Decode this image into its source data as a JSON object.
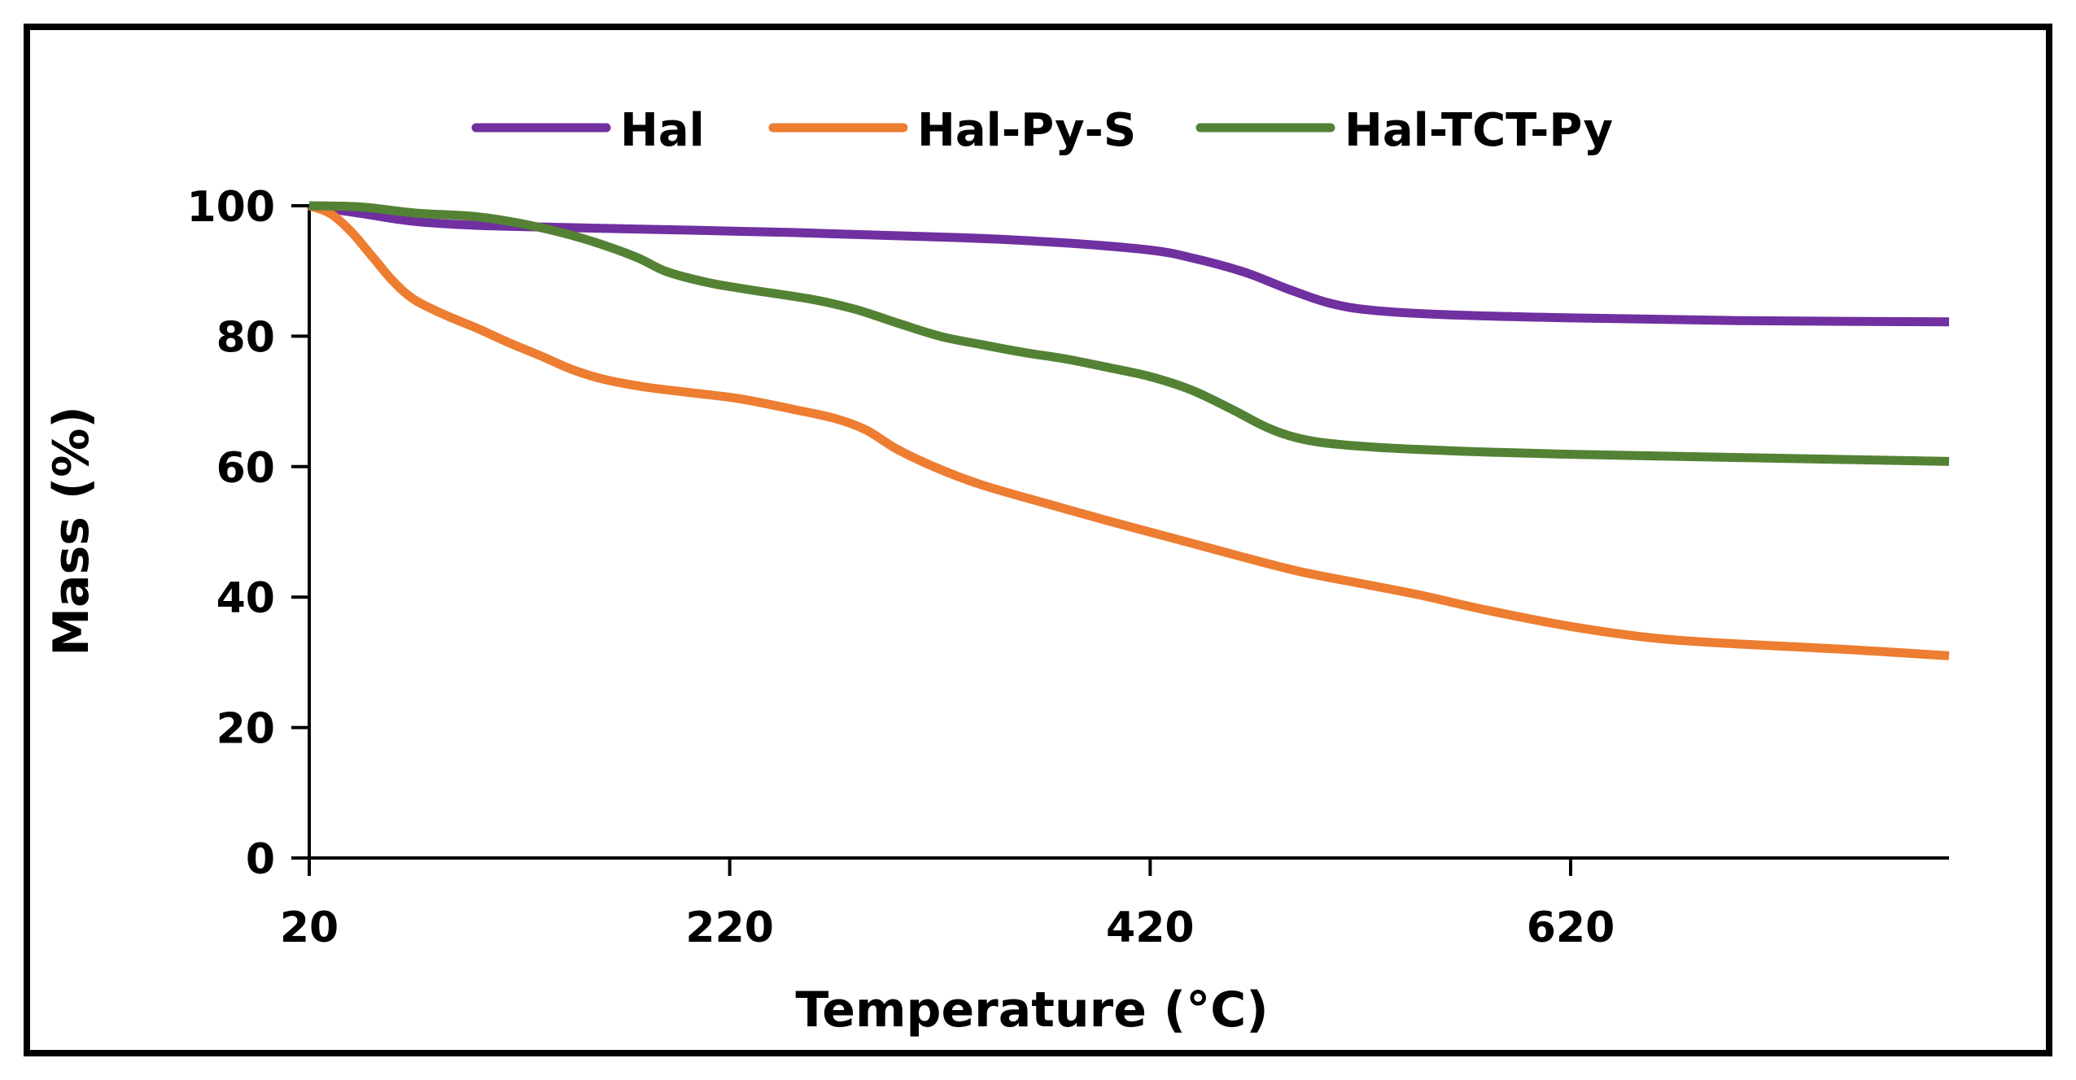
{
  "chart_data": {
    "type": "line",
    "title": "",
    "xlabel": "Temperature (°C)",
    "ylabel": "Mass (%)",
    "xlim": [
      20,
      800
    ],
    "ylim": [
      0,
      100
    ],
    "xticks": [
      20,
      220,
      420,
      620
    ],
    "yticks": [
      0,
      20,
      40,
      60,
      80,
      100
    ],
    "grid": false,
    "legend": "top-center",
    "series": [
      {
        "name": "Hal",
        "color": "#7030A0",
        "points": [
          [
            20,
            100
          ],
          [
            45,
            98.8
          ],
          [
            70,
            97.6
          ],
          [
            100,
            97
          ],
          [
            150,
            96.6
          ],
          [
            250,
            95.9
          ],
          [
            330,
            95.1
          ],
          [
            380,
            94.3
          ],
          [
            420,
            93.2
          ],
          [
            440,
            92
          ],
          [
            465,
            89.8
          ],
          [
            485,
            87.3
          ],
          [
            505,
            85.1
          ],
          [
            525,
            84
          ],
          [
            560,
            83.3
          ],
          [
            620,
            82.8
          ],
          [
            700,
            82.4
          ],
          [
            800,
            82.2
          ]
        ]
      },
      {
        "name": "Hal-Py-S",
        "color": "#ED7D31",
        "points": [
          [
            20,
            100
          ],
          [
            30,
            98.8
          ],
          [
            40,
            96
          ],
          [
            50,
            92.2
          ],
          [
            60,
            88.4
          ],
          [
            70,
            85.6
          ],
          [
            85,
            83.2
          ],
          [
            100,
            81.2
          ],
          [
            115,
            79
          ],
          [
            130,
            77
          ],
          [
            145,
            74.9
          ],
          [
            160,
            73.4
          ],
          [
            180,
            72.2
          ],
          [
            200,
            71.4
          ],
          [
            225,
            70.4
          ],
          [
            250,
            68.8
          ],
          [
            270,
            67.4
          ],
          [
            285,
            65.6
          ],
          [
            300,
            62.6
          ],
          [
            320,
            59.6
          ],
          [
            340,
            57.2
          ],
          [
            370,
            54.4
          ],
          [
            400,
            51.7
          ],
          [
            430,
            49.1
          ],
          [
            460,
            46.5
          ],
          [
            490,
            44
          ],
          [
            520,
            42.1
          ],
          [
            550,
            40.2
          ],
          [
            580,
            38
          ],
          [
            620,
            35.5
          ],
          [
            660,
            33.7
          ],
          [
            700,
            32.8
          ],
          [
            750,
            32
          ],
          [
            800,
            31
          ]
        ]
      },
      {
        "name": "Hal-TCT-Py",
        "color": "#548235",
        "points": [
          [
            20,
            100
          ],
          [
            45,
            99.8
          ],
          [
            70,
            98.9
          ],
          [
            100,
            98.3
          ],
          [
            125,
            97
          ],
          [
            150,
            95
          ],
          [
            175,
            92.2
          ],
          [
            190,
            89.9
          ],
          [
            210,
            88.2
          ],
          [
            230,
            87.1
          ],
          [
            260,
            85.6
          ],
          [
            280,
            84.1
          ],
          [
            300,
            82
          ],
          [
            320,
            80
          ],
          [
            340,
            78.7
          ],
          [
            360,
            77.5
          ],
          [
            380,
            76.5
          ],
          [
            400,
            75.2
          ],
          [
            420,
            73.8
          ],
          [
            440,
            71.7
          ],
          [
            460,
            68.6
          ],
          [
            475,
            66.1
          ],
          [
            490,
            64.4
          ],
          [
            510,
            63.4
          ],
          [
            550,
            62.6
          ],
          [
            620,
            61.9
          ],
          [
            700,
            61.4
          ],
          [
            800,
            60.8
          ]
        ]
      }
    ]
  }
}
